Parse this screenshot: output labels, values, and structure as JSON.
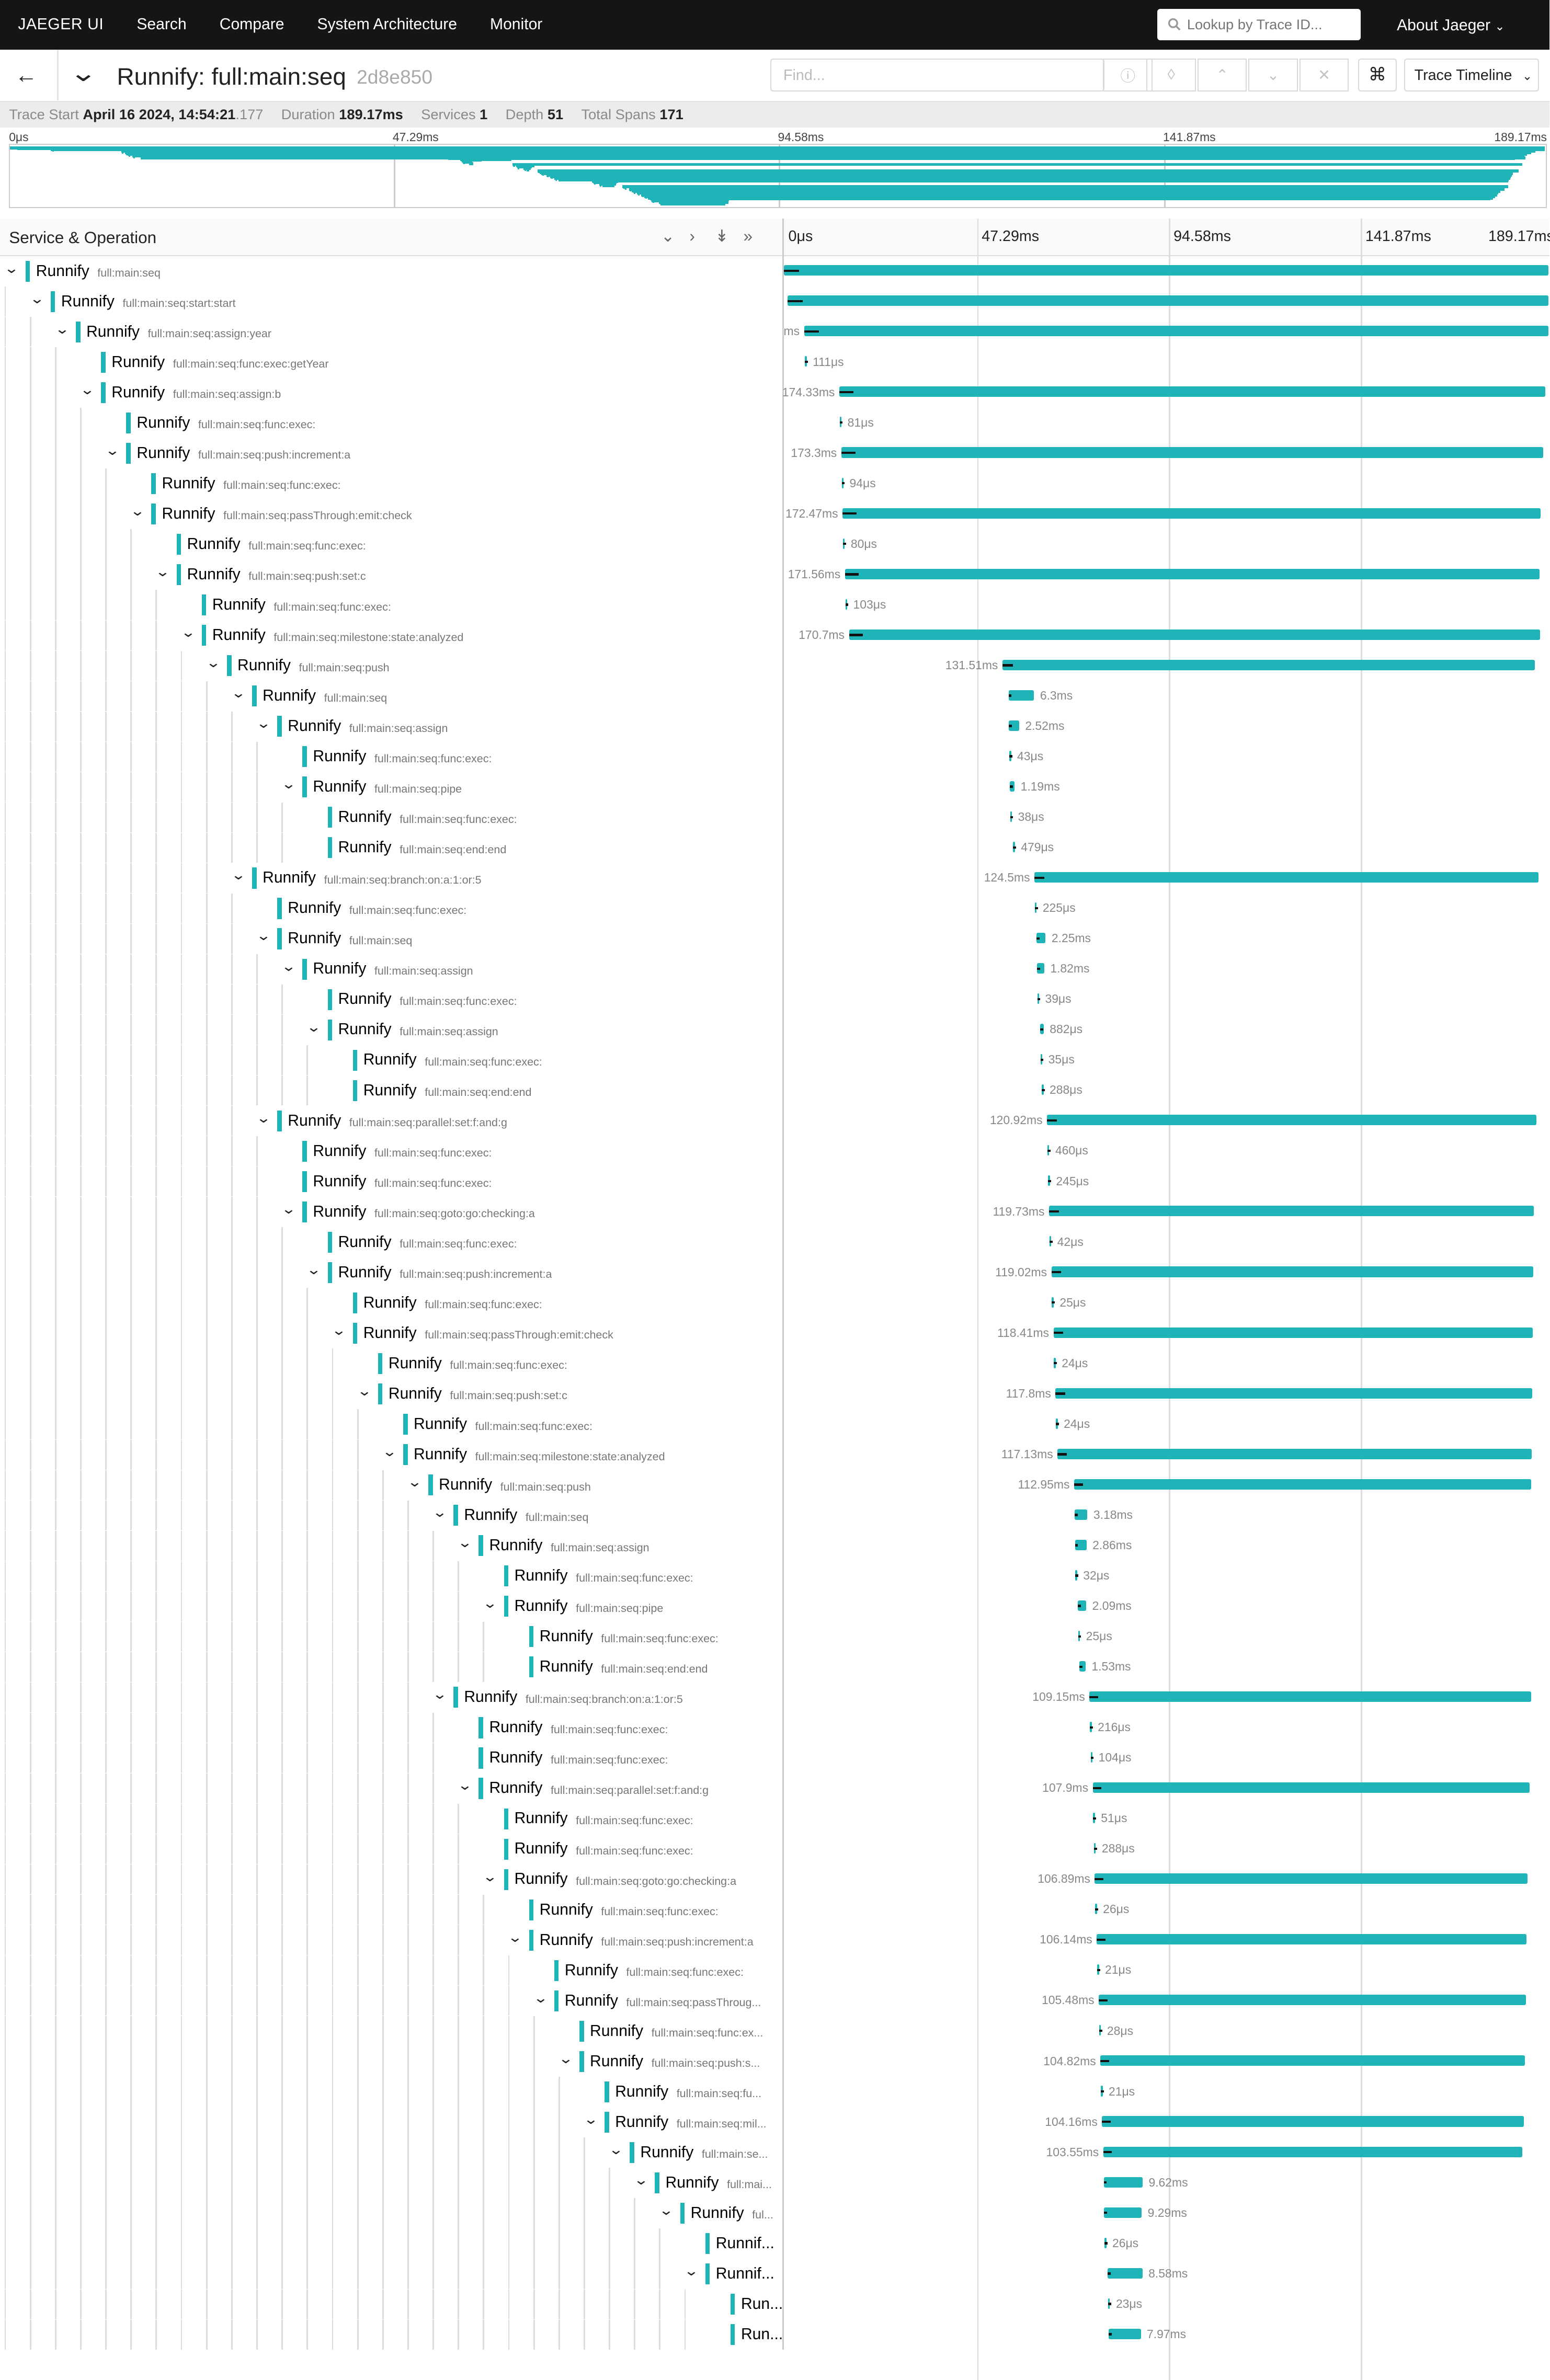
{
  "nav": {
    "brand": "JAEGER UI",
    "links": [
      "Search",
      "Compare",
      "System Architecture",
      "Monitor"
    ],
    "lookup_placeholder": "Lookup by Trace ID...",
    "about": "About Jaeger"
  },
  "header": {
    "title": "Runnify: full:main:seq",
    "trace_id": "2d8e850",
    "find_placeholder": "Find...",
    "view_mode": "Trace Timeline"
  },
  "summary": {
    "trace_start_label": "Trace Start",
    "trace_start_date": "April 16 2024, 14:54:21",
    "trace_start_ms": ".177",
    "duration_label": "Duration",
    "duration": "189.17ms",
    "services_label": "Services",
    "services": "1",
    "depth_label": "Depth",
    "depth": "51",
    "total_spans_label": "Total Spans",
    "total_spans": "171"
  },
  "timeline": {
    "column_title": "Service & Operation",
    "ticks": [
      "0μs",
      "47.29ms",
      "94.58ms",
      "141.87ms",
      "189.17ms"
    ],
    "total_ms": 189.17
  },
  "spans": [
    {
      "d": 0,
      "svc": "Runnify",
      "op": "full:main:seq",
      "s": 0,
      "dur": 189.17,
      "label": "",
      "expand": true
    },
    {
      "d": 1,
      "svc": "Runnify",
      "op": "full:main:seq:start:start",
      "s": 0.9,
      "dur": 188.27,
      "label": "",
      "expand": true
    },
    {
      "d": 2,
      "svc": "Runnify",
      "op": "full:main:seq:assign:year",
      "s": 5.0,
      "dur": 184.17,
      "label": "ms",
      "expand": true
    },
    {
      "d": 3,
      "svc": "Runnify",
      "op": "full:main:seq:func:exec:getYear",
      "s": 5.2,
      "dur": 0.111,
      "label": "111μs",
      "expand": false
    },
    {
      "d": 3,
      "svc": "Runnify",
      "op": "full:main:seq:assign:b",
      "s": 13.7,
      "dur": 174.33,
      "label": "174.33ms",
      "expand": true
    },
    {
      "d": 4,
      "svc": "Runnify",
      "op": "full:main:seq:func:exec:",
      "s": 13.8,
      "dur": 0.081,
      "label": "81μs",
      "expand": false
    },
    {
      "d": 4,
      "svc": "Runnify",
      "op": "full:main:seq:push:increment:a",
      "s": 14.2,
      "dur": 173.3,
      "label": "173.3ms",
      "expand": true
    },
    {
      "d": 5,
      "svc": "Runnify",
      "op": "full:main:seq:func:exec:",
      "s": 14.3,
      "dur": 0.094,
      "label": "94μs",
      "expand": false
    },
    {
      "d": 5,
      "svc": "Runnify",
      "op": "full:main:seq:passThrough:emit:check",
      "s": 14.5,
      "dur": 172.47,
      "label": "172.47ms",
      "expand": true
    },
    {
      "d": 6,
      "svc": "Runnify",
      "op": "full:main:seq:func:exec:",
      "s": 14.6,
      "dur": 0.08,
      "label": "80μs",
      "expand": false
    },
    {
      "d": 6,
      "svc": "Runnify",
      "op": "full:main:seq:push:set:c",
      "s": 15.1,
      "dur": 171.56,
      "label": "171.56ms",
      "expand": true
    },
    {
      "d": 7,
      "svc": "Runnify",
      "op": "full:main:seq:func:exec:",
      "s": 15.2,
      "dur": 0.103,
      "label": "103μs",
      "expand": false
    },
    {
      "d": 7,
      "svc": "Runnify",
      "op": "full:main:seq:milestone:state:analyzed",
      "s": 16.1,
      "dur": 170.7,
      "label": "170.7ms",
      "expand": true
    },
    {
      "d": 8,
      "svc": "Runnify",
      "op": "full:main:seq:push",
      "s": 54.0,
      "dur": 131.51,
      "label": "131.51ms",
      "expand": true
    },
    {
      "d": 9,
      "svc": "Runnify",
      "op": "full:main:seq",
      "s": 55.5,
      "dur": 6.3,
      "label": "6.3ms",
      "expand": true
    },
    {
      "d": 10,
      "svc": "Runnify",
      "op": "full:main:seq:assign",
      "s": 55.6,
      "dur": 2.52,
      "label": "2.52ms",
      "expand": true
    },
    {
      "d": 11,
      "svc": "Runnify",
      "op": "full:main:seq:func:exec:",
      "s": 55.7,
      "dur": 0.043,
      "label": "43μs",
      "expand": false
    },
    {
      "d": 11,
      "svc": "Runnify",
      "op": "full:main:seq:pipe",
      "s": 55.8,
      "dur": 1.19,
      "label": "1.19ms",
      "expand": true
    },
    {
      "d": 12,
      "svc": "Runnify",
      "op": "full:main:seq:func:exec:",
      "s": 55.9,
      "dur": 0.038,
      "label": "38μs",
      "expand": false
    },
    {
      "d": 12,
      "svc": "Runnify",
      "op": "full:main:seq:end:end",
      "s": 56.6,
      "dur": 0.479,
      "label": "479μs",
      "expand": false
    },
    {
      "d": 9,
      "svc": "Runnify",
      "op": "full:main:seq:branch:on:a:1:or:5",
      "s": 61.9,
      "dur": 124.5,
      "label": "124.5ms",
      "expand": true
    },
    {
      "d": 10,
      "svc": "Runnify",
      "op": "full:main:seq:func:exec:",
      "s": 62.0,
      "dur": 0.225,
      "label": "225μs",
      "expand": false
    },
    {
      "d": 10,
      "svc": "Runnify",
      "op": "full:main:seq",
      "s": 62.4,
      "dur": 2.25,
      "label": "2.25ms",
      "expand": true
    },
    {
      "d": 11,
      "svc": "Runnify",
      "op": "full:main:seq:assign",
      "s": 62.5,
      "dur": 1.82,
      "label": "1.82ms",
      "expand": true
    },
    {
      "d": 12,
      "svc": "Runnify",
      "op": "full:main:seq:func:exec:",
      "s": 62.6,
      "dur": 0.039,
      "label": "39μs",
      "expand": false
    },
    {
      "d": 12,
      "svc": "Runnify",
      "op": "full:main:seq:assign",
      "s": 63.3,
      "dur": 0.882,
      "label": "882μs",
      "expand": true
    },
    {
      "d": 13,
      "svc": "Runnify",
      "op": "full:main:seq:func:exec:",
      "s": 63.4,
      "dur": 0.035,
      "label": "35μs",
      "expand": false
    },
    {
      "d": 13,
      "svc": "Runnify",
      "op": "full:main:seq:end:end",
      "s": 63.7,
      "dur": 0.288,
      "label": "288μs",
      "expand": false
    },
    {
      "d": 10,
      "svc": "Runnify",
      "op": "full:main:seq:parallel:set:f:and:g",
      "s": 65.0,
      "dur": 120.92,
      "label": "120.92ms",
      "expand": true
    },
    {
      "d": 11,
      "svc": "Runnify",
      "op": "full:main:seq:func:exec:",
      "s": 65.1,
      "dur": 0.46,
      "label": "460μs",
      "expand": false
    },
    {
      "d": 11,
      "svc": "Runnify",
      "op": "full:main:seq:func:exec:",
      "s": 65.3,
      "dur": 0.245,
      "label": "245μs",
      "expand": false
    },
    {
      "d": 11,
      "svc": "Runnify",
      "op": "full:main:seq:goto:go:checking:a",
      "s": 65.5,
      "dur": 119.73,
      "label": "119.73ms",
      "expand": true
    },
    {
      "d": 12,
      "svc": "Runnify",
      "op": "full:main:seq:func:exec:",
      "s": 65.6,
      "dur": 0.042,
      "label": "42μs",
      "expand": false
    },
    {
      "d": 12,
      "svc": "Runnify",
      "op": "full:main:seq:push:increment:a",
      "s": 66.1,
      "dur": 119.02,
      "label": "119.02ms",
      "expand": true
    },
    {
      "d": 13,
      "svc": "Runnify",
      "op": "full:main:seq:func:exec:",
      "s": 66.2,
      "dur": 0.025,
      "label": "25μs",
      "expand": false
    },
    {
      "d": 13,
      "svc": "Runnify",
      "op": "full:main:seq:passThrough:emit:check",
      "s": 66.6,
      "dur": 118.41,
      "label": "118.41ms",
      "expand": true
    },
    {
      "d": 14,
      "svc": "Runnify",
      "op": "full:main:seq:func:exec:",
      "s": 66.7,
      "dur": 0.024,
      "label": "24μs",
      "expand": false
    },
    {
      "d": 14,
      "svc": "Runnify",
      "op": "full:main:seq:push:set:c",
      "s": 67.1,
      "dur": 117.8,
      "label": "117.8ms",
      "expand": true
    },
    {
      "d": 15,
      "svc": "Runnify",
      "op": "full:main:seq:func:exec:",
      "s": 67.2,
      "dur": 0.024,
      "label": "24μs",
      "expand": false
    },
    {
      "d": 15,
      "svc": "Runnify",
      "op": "full:main:seq:milestone:state:analyzed",
      "s": 67.6,
      "dur": 117.13,
      "label": "117.13ms",
      "expand": true
    },
    {
      "d": 16,
      "svc": "Runnify",
      "op": "full:main:seq:push",
      "s": 71.7,
      "dur": 112.95,
      "label": "112.95ms",
      "expand": true
    },
    {
      "d": 17,
      "svc": "Runnify",
      "op": "full:main:seq",
      "s": 71.8,
      "dur": 3.18,
      "label": "3.18ms",
      "expand": true
    },
    {
      "d": 18,
      "svc": "Runnify",
      "op": "full:main:seq:assign",
      "s": 71.9,
      "dur": 2.86,
      "label": "2.86ms",
      "expand": true
    },
    {
      "d": 19,
      "svc": "Runnify",
      "op": "full:main:seq:func:exec:",
      "s": 72.0,
      "dur": 0.032,
      "label": "32μs",
      "expand": false
    },
    {
      "d": 19,
      "svc": "Runnify",
      "op": "full:main:seq:pipe",
      "s": 72.6,
      "dur": 2.09,
      "label": "2.09ms",
      "expand": true
    },
    {
      "d": 20,
      "svc": "Runnify",
      "op": "full:main:seq:func:exec:",
      "s": 72.7,
      "dur": 0.025,
      "label": "25μs",
      "expand": false
    },
    {
      "d": 20,
      "svc": "Runnify",
      "op": "full:main:seq:end:end",
      "s": 73.0,
      "dur": 1.53,
      "label": "1.53ms",
      "expand": false
    },
    {
      "d": 17,
      "svc": "Runnify",
      "op": "full:main:seq:branch:on:a:1:or:5",
      "s": 75.5,
      "dur": 109.15,
      "label": "109.15ms",
      "expand": true
    },
    {
      "d": 18,
      "svc": "Runnify",
      "op": "full:main:seq:func:exec:",
      "s": 75.6,
      "dur": 0.216,
      "label": "216μs",
      "expand": false
    },
    {
      "d": 18,
      "svc": "Runnify",
      "op": "full:main:seq:func:exec:",
      "s": 75.8,
      "dur": 0.104,
      "label": "104μs",
      "expand": false
    },
    {
      "d": 18,
      "svc": "Runnify",
      "op": "full:main:seq:parallel:set:f:and:g",
      "s": 76.3,
      "dur": 107.9,
      "label": "107.9ms",
      "expand": true
    },
    {
      "d": 19,
      "svc": "Runnify",
      "op": "full:main:seq:func:exec:",
      "s": 76.4,
      "dur": 0.051,
      "label": "51μs",
      "expand": false
    },
    {
      "d": 19,
      "svc": "Runnify",
      "op": "full:main:seq:func:exec:",
      "s": 76.6,
      "dur": 0.288,
      "label": "288μs",
      "expand": false
    },
    {
      "d": 19,
      "svc": "Runnify",
      "op": "full:main:seq:goto:go:checking:a",
      "s": 76.8,
      "dur": 106.89,
      "label": "106.89ms",
      "expand": true
    },
    {
      "d": 20,
      "svc": "Runnify",
      "op": "full:main:seq:func:exec:",
      "s": 76.9,
      "dur": 0.026,
      "label": "26μs",
      "expand": false
    },
    {
      "d": 20,
      "svc": "Runnify",
      "op": "full:main:seq:push:increment:a",
      "s": 77.3,
      "dur": 106.14,
      "label": "106.14ms",
      "expand": true
    },
    {
      "d": 21,
      "svc": "Runnify",
      "op": "full:main:seq:func:exec:",
      "s": 77.4,
      "dur": 0.021,
      "label": "21μs",
      "expand": false
    },
    {
      "d": 21,
      "svc": "Runnify",
      "op": "full:main:seq:passThroug...",
      "s": 77.8,
      "dur": 105.48,
      "label": "105.48ms",
      "expand": true
    },
    {
      "d": 22,
      "svc": "Runnify",
      "op": "full:main:seq:func:ex...",
      "s": 77.9,
      "dur": 0.028,
      "label": "28μs",
      "expand": false
    },
    {
      "d": 22,
      "svc": "Runnify",
      "op": "full:main:seq:push:s...",
      "s": 78.2,
      "dur": 104.82,
      "label": "104.82ms",
      "expand": true
    },
    {
      "d": 23,
      "svc": "Runnify",
      "op": "full:main:seq:fu...",
      "s": 78.3,
      "dur": 0.021,
      "label": "21μs",
      "expand": false
    },
    {
      "d": 23,
      "svc": "Runnify",
      "op": "full:main:seq:mil...",
      "s": 78.6,
      "dur": 104.16,
      "label": "104.16ms",
      "expand": true
    },
    {
      "d": 24,
      "svc": "Runnify",
      "op": "full:main:se...",
      "s": 78.9,
      "dur": 103.55,
      "label": "103.55ms",
      "expand": true
    },
    {
      "d": 25,
      "svc": "Runnify",
      "op": "full:mai...",
      "s": 79.0,
      "dur": 9.62,
      "label": "9.62ms",
      "expand": true
    },
    {
      "d": 26,
      "svc": "Runnify",
      "op": "ful...",
      "s": 79.1,
      "dur": 9.29,
      "label": "9.29ms",
      "expand": true
    },
    {
      "d": 27,
      "svc": "Runnif...",
      "op": "",
      "s": 79.2,
      "dur": 0.026,
      "label": "26μs",
      "expand": false
    },
    {
      "d": 27,
      "svc": "Runnif...",
      "op": "",
      "s": 80.0,
      "dur": 8.58,
      "label": "8.58ms",
      "expand": true
    },
    {
      "d": 28,
      "svc": "Run...",
      "op": "",
      "s": 80.1,
      "dur": 0.023,
      "label": "23μs",
      "expand": false
    },
    {
      "d": 28,
      "svc": "Run...",
      "op": "",
      "s": 80.2,
      "dur": 7.97,
      "label": "7.97ms",
      "expand": false
    }
  ],
  "colors": {
    "accent": "#1eb4b8",
    "nav_bg": "#151515"
  }
}
